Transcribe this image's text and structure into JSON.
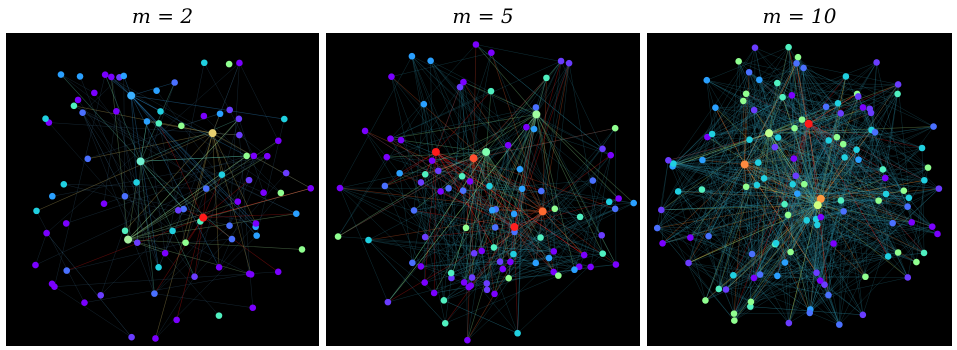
{
  "panels": [
    {
      "title": "m = 2",
      "nodes": 82,
      "edge_density": 1,
      "hubs": [
        {
          "rx": 0.63,
          "ry": 0.59,
          "color": "#ff1a1a"
        },
        {
          "rx": 0.66,
          "ry": 0.32,
          "color": "#e8d070"
        },
        {
          "rx": 0.39,
          "ry": 0.66,
          "color": "#a8f0a0"
        },
        {
          "rx": 0.43,
          "ry": 0.41,
          "color": "#70f0d0"
        },
        {
          "rx": 0.4,
          "ry": 0.2,
          "color": "#3ab0ff"
        }
      ]
    },
    {
      "title": "m = 5",
      "nodes": 95,
      "edge_density": 3,
      "hubs": [
        {
          "rx": 0.35,
          "ry": 0.38,
          "color": "#ff1a1a"
        },
        {
          "rx": 0.6,
          "ry": 0.62,
          "color": "#ff2020"
        },
        {
          "rx": 0.69,
          "ry": 0.57,
          "color": "#ff6a30"
        },
        {
          "rx": 0.47,
          "ry": 0.4,
          "color": "#ff5030"
        },
        {
          "rx": 0.51,
          "ry": 0.38,
          "color": "#80ffb0"
        },
        {
          "rx": 0.67,
          "ry": 0.26,
          "color": "#a0ffa0"
        }
      ]
    },
    {
      "title": "m = 10",
      "nodes": 120,
      "edge_density": 6,
      "hubs": [
        {
          "rx": 0.53,
          "ry": 0.29,
          "color": "#ff1a1a"
        },
        {
          "rx": 0.32,
          "ry": 0.42,
          "color": "#ff8a40"
        },
        {
          "rx": 0.57,
          "ry": 0.53,
          "color": "#ff9a40"
        },
        {
          "rx": 0.56,
          "ry": 0.55,
          "color": "#d0ff80"
        },
        {
          "rx": 0.4,
          "ry": 0.32,
          "color": "#c0ff90"
        }
      ]
    }
  ],
  "palette": [
    "#7a00ff",
    "#6a3cff",
    "#4a70ff",
    "#2aa0ff",
    "#20d0e0",
    "#50f0c0",
    "#90ff90"
  ]
}
